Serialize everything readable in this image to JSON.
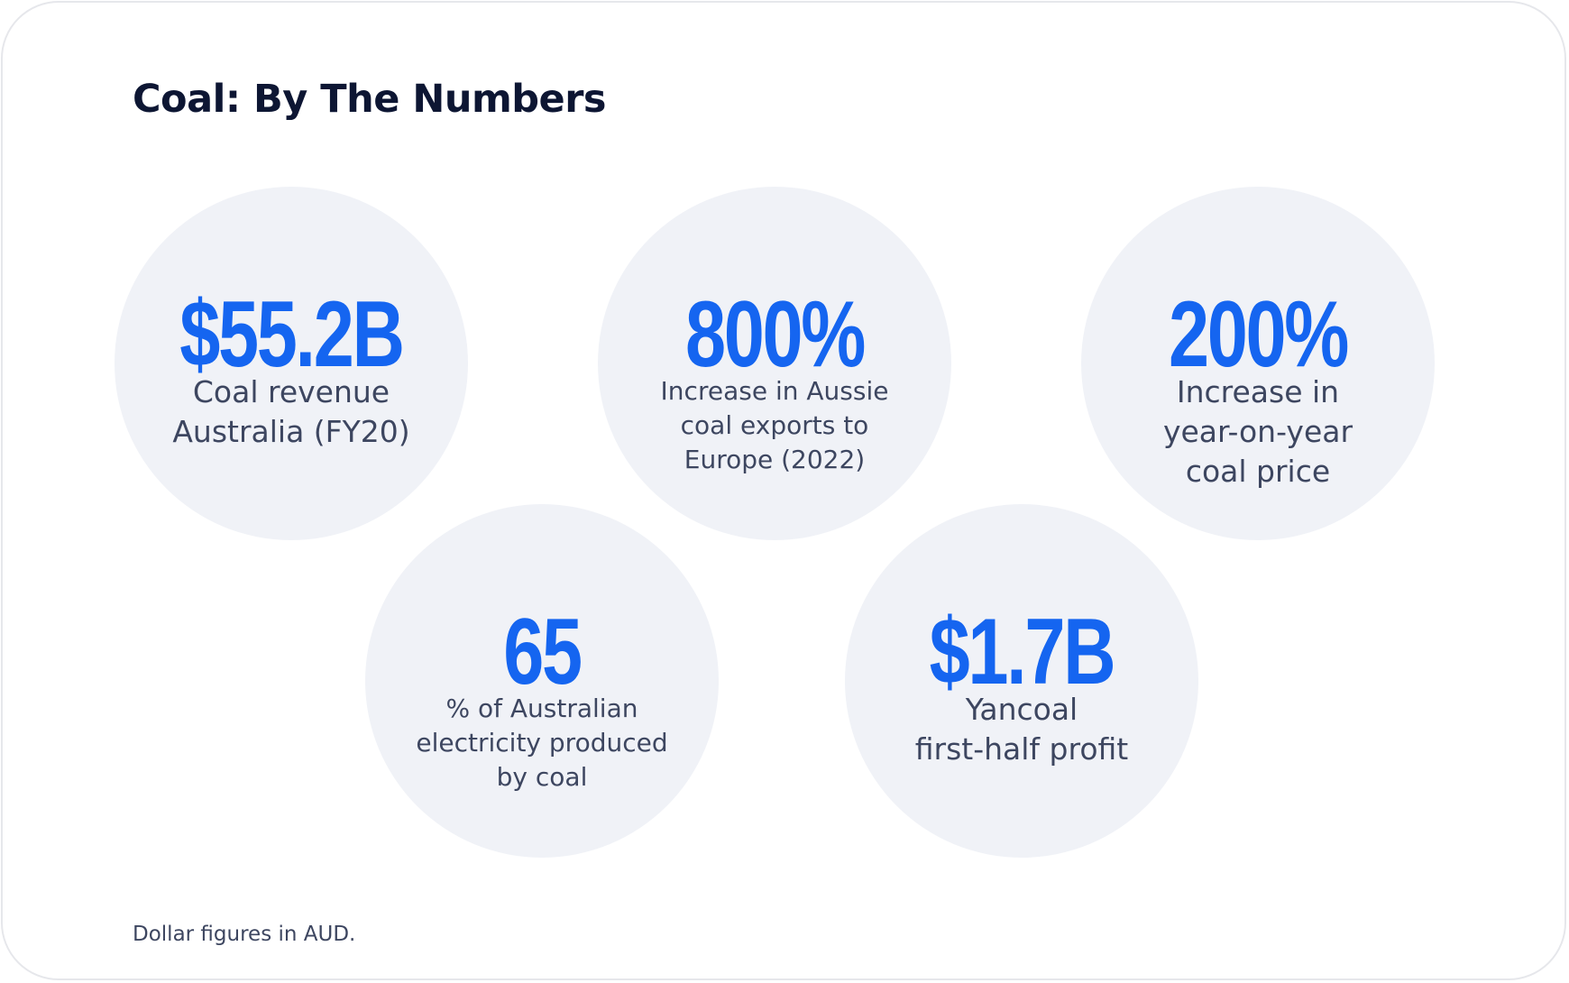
{
  "title": "Coal: By The Numbers",
  "stats": [
    {
      "value": "$55.2B",
      "caption": "Coal revenue\nAustralia (FY20)"
    },
    {
      "value": "800%",
      "caption": "Increase in Aussie\ncoal exports to\nEurope (2022)"
    },
    {
      "value": "200%",
      "caption": "Increase in\nyear-on-year\ncoal price"
    },
    {
      "value": "65",
      "caption": "% of Australian\nelectricity produced\nby coal"
    },
    {
      "value": "$1.7B",
      "caption": "Yancoal\nfirst-half profit"
    }
  ],
  "footnote": "Dollar figures in AUD.",
  "colors": {
    "accent": "#1565f0",
    "title": "#0d1633",
    "text": "#3d4660",
    "circle": "#f0f2f7",
    "border": "#e6e7eb"
  }
}
